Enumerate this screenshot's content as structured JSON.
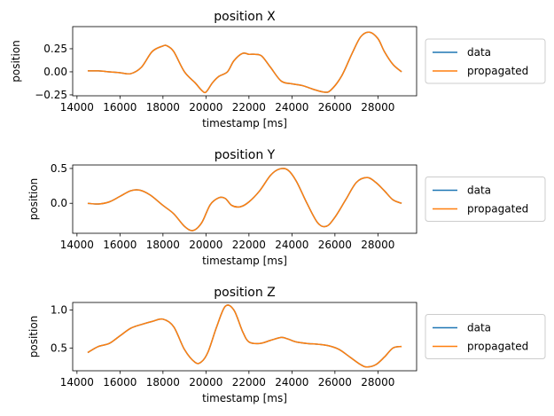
{
  "colors": {
    "data": "#1f77b4",
    "propagated": "#ff7f0e"
  },
  "chart_data": [
    {
      "type": "line",
      "title": "position X",
      "xlabel": "timestamp [ms]",
      "ylabel": "position",
      "xlim": [
        13800,
        29800
      ],
      "ylim": [
        -0.26,
        0.49
      ],
      "xticks": [
        14000,
        16000,
        18000,
        20000,
        22000,
        24000,
        26000,
        28000
      ],
      "yticks": [
        -0.25,
        0.0,
        0.25
      ],
      "ytick_labels": [
        "−0.25",
        "0.00",
        "0.25"
      ],
      "legend": [
        "data",
        "propagated"
      ],
      "legend_position": "right",
      "x": [
        14500,
        15000,
        15500,
        16000,
        16500,
        17000,
        17500,
        18000,
        18200,
        18500,
        19000,
        19500,
        19800,
        20000,
        20300,
        20600,
        21000,
        21300,
        21700,
        22000,
        22300,
        22600,
        23000,
        23500,
        24000,
        24500,
        25000,
        25500,
        25800,
        26300,
        26800,
        27200,
        27600,
        28000,
        28300,
        28700,
        29100
      ],
      "series": [
        {
          "name": "data",
          "values": [
            0.01,
            0.01,
            0.0,
            -0.01,
            -0.02,
            0.05,
            0.22,
            0.28,
            0.28,
            0.22,
            0.0,
            -0.12,
            -0.2,
            -0.22,
            -0.12,
            -0.05,
            0.0,
            0.12,
            0.2,
            0.19,
            0.19,
            0.17,
            0.05,
            -0.1,
            -0.13,
            -0.15,
            -0.19,
            -0.22,
            -0.2,
            -0.05,
            0.2,
            0.38,
            0.43,
            0.36,
            0.22,
            0.08,
            0.0
          ]
        },
        {
          "name": "propagated",
          "values": [
            0.01,
            0.01,
            0.0,
            -0.01,
            -0.02,
            0.05,
            0.22,
            0.28,
            0.28,
            0.22,
            0.0,
            -0.12,
            -0.2,
            -0.22,
            -0.12,
            -0.05,
            0.0,
            0.12,
            0.2,
            0.19,
            0.19,
            0.17,
            0.05,
            -0.1,
            -0.13,
            -0.15,
            -0.19,
            -0.22,
            -0.2,
            -0.05,
            0.2,
            0.38,
            0.43,
            0.36,
            0.22,
            0.08,
            0.0
          ]
        }
      ]
    },
    {
      "type": "line",
      "title": "position Y",
      "xlabel": "timestamp [ms]",
      "ylabel": "position",
      "xlim": [
        13800,
        29800
      ],
      "ylim": [
        -0.43,
        0.55
      ],
      "xticks": [
        14000,
        16000,
        18000,
        20000,
        22000,
        24000,
        26000,
        28000
      ],
      "yticks": [
        0.0,
        0.5
      ],
      "ytick_labels": [
        "0.0",
        "0.5"
      ],
      "legend": [
        "data",
        "propagated"
      ],
      "legend_position": "right",
      "x": [
        14500,
        15000,
        15500,
        16000,
        16500,
        16900,
        17400,
        18000,
        18500,
        19000,
        19400,
        19800,
        20200,
        20600,
        20900,
        21200,
        21600,
        22000,
        22500,
        23000,
        23400,
        23800,
        24200,
        24700,
        25200,
        25600,
        26000,
        26500,
        27000,
        27500,
        27900,
        28300,
        28700,
        29100
      ],
      "series": [
        {
          "name": "data",
          "values": [
            0.0,
            -0.01,
            0.02,
            0.1,
            0.18,
            0.19,
            0.12,
            -0.03,
            -0.15,
            -0.33,
            -0.39,
            -0.28,
            -0.02,
            0.08,
            0.07,
            -0.03,
            -0.05,
            0.02,
            0.18,
            0.4,
            0.49,
            0.48,
            0.32,
            0.0,
            -0.28,
            -0.33,
            -0.2,
            0.05,
            0.3,
            0.37,
            0.3,
            0.18,
            0.05,
            0.0
          ]
        },
        {
          "name": "propagated",
          "values": [
            0.0,
            -0.01,
            0.02,
            0.1,
            0.18,
            0.19,
            0.12,
            -0.03,
            -0.15,
            -0.33,
            -0.39,
            -0.28,
            -0.02,
            0.08,
            0.07,
            -0.03,
            -0.05,
            0.02,
            0.18,
            0.4,
            0.49,
            0.48,
            0.32,
            0.0,
            -0.28,
            -0.33,
            -0.2,
            0.05,
            0.3,
            0.37,
            0.3,
            0.18,
            0.05,
            0.0
          ]
        }
      ]
    },
    {
      "type": "line",
      "title": "position Z",
      "xlabel": "timestamp [ms]",
      "ylabel": "position",
      "xlim": [
        13800,
        29800
      ],
      "ylim": [
        0.2,
        1.1
      ],
      "xticks": [
        14000,
        16000,
        18000,
        20000,
        22000,
        24000,
        26000,
        28000
      ],
      "yticks": [
        0.5,
        1.0
      ],
      "ytick_labels": [
        "0.5",
        "1.0"
      ],
      "legend": [
        "data",
        "propagated"
      ],
      "legend_position": "right",
      "x": [
        14500,
        15000,
        15500,
        16000,
        16500,
        17000,
        17500,
        18000,
        18500,
        19000,
        19500,
        19800,
        20100,
        20500,
        20900,
        21300,
        21700,
        22000,
        22500,
        23000,
        23500,
        23800,
        24200,
        24700,
        25200,
        25700,
        26200,
        26700,
        27200,
        27500,
        27900,
        28300,
        28700,
        29100
      ],
      "series": [
        {
          "name": "data",
          "values": [
            0.44,
            0.52,
            0.56,
            0.66,
            0.76,
            0.81,
            0.85,
            0.88,
            0.78,
            0.48,
            0.31,
            0.32,
            0.45,
            0.78,
            1.05,
            1.0,
            0.72,
            0.58,
            0.56,
            0.6,
            0.64,
            0.62,
            0.58,
            0.56,
            0.55,
            0.53,
            0.48,
            0.38,
            0.28,
            0.25,
            0.28,
            0.38,
            0.5,
            0.52
          ]
        },
        {
          "name": "propagated",
          "values": [
            0.44,
            0.52,
            0.56,
            0.66,
            0.76,
            0.81,
            0.85,
            0.88,
            0.78,
            0.48,
            0.31,
            0.32,
            0.45,
            0.78,
            1.05,
            1.0,
            0.72,
            0.58,
            0.56,
            0.6,
            0.64,
            0.62,
            0.58,
            0.56,
            0.55,
            0.53,
            0.48,
            0.38,
            0.28,
            0.25,
            0.28,
            0.38,
            0.5,
            0.52
          ]
        }
      ]
    }
  ]
}
